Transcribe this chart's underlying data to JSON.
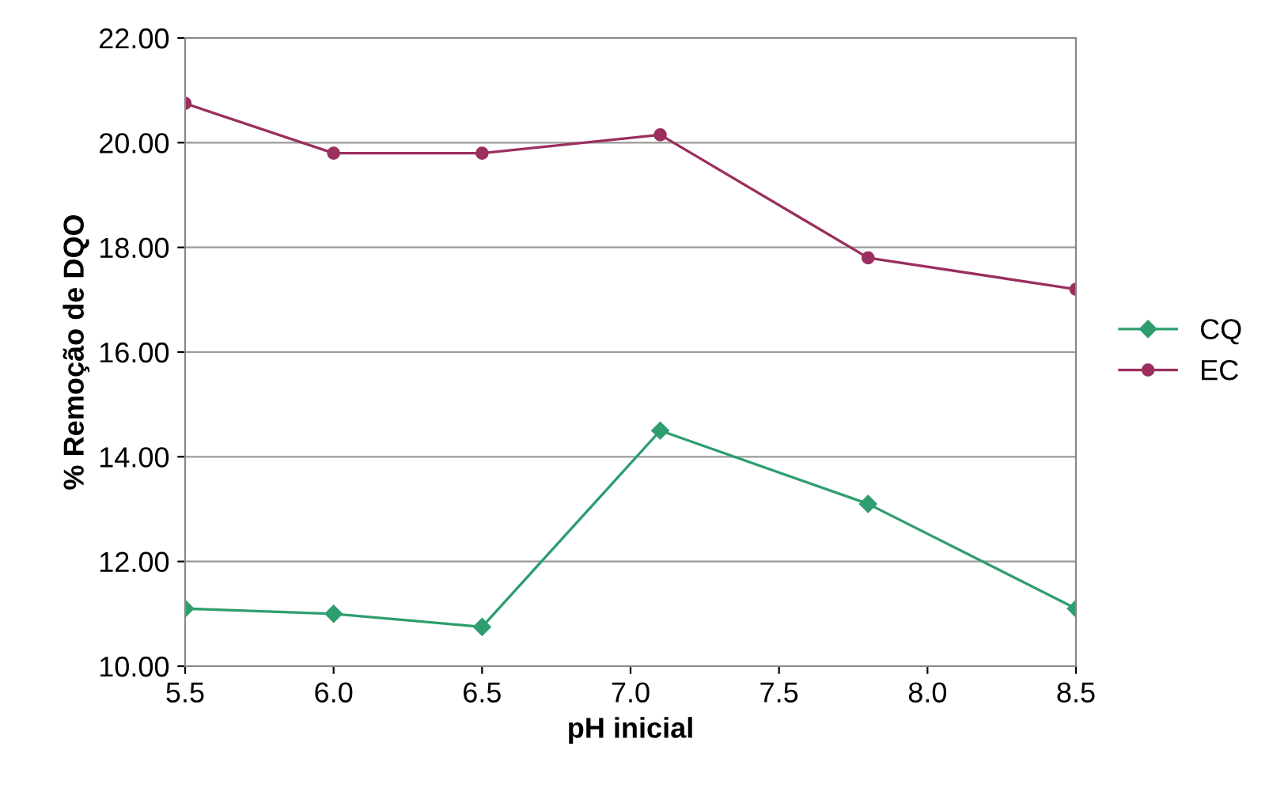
{
  "chart_data": {
    "type": "line",
    "xlabel": "pH inicial",
    "ylabel": "% Remoção de DQO",
    "x": [
      5.5,
      6.0,
      6.5,
      7.1,
      7.8,
      8.5
    ],
    "series": [
      {
        "name": "CQ",
        "color": "#2e9e6e",
        "marker": "diamond",
        "values": [
          11.1,
          11.0,
          10.75,
          14.5,
          13.1,
          11.1
        ]
      },
      {
        "name": "EC",
        "color": "#9b2f5e",
        "marker": "circle",
        "values": [
          20.75,
          19.8,
          19.8,
          20.15,
          17.8,
          17.2
        ]
      }
    ],
    "xlim": [
      5.5,
      8.5
    ],
    "xticks": [
      {
        "value": 5.5,
        "label": "5.5"
      },
      {
        "value": 6.0,
        "label": "6.0"
      },
      {
        "value": 6.5,
        "label": "6.5"
      },
      {
        "value": 7.0,
        "label": "7.0"
      },
      {
        "value": 7.5,
        "label": "7.5"
      },
      {
        "value": 8.0,
        "label": "8.0"
      },
      {
        "value": 8.5,
        "label": "8.5"
      }
    ],
    "ylim": [
      10,
      22
    ],
    "yticks": [
      {
        "value": 10,
        "label": "10.00"
      },
      {
        "value": 12,
        "label": "12.00"
      },
      {
        "value": 14,
        "label": "14.00"
      },
      {
        "value": 16,
        "label": "16.00"
      },
      {
        "value": 18,
        "label": "18.00"
      },
      {
        "value": 20,
        "label": "20.00"
      },
      {
        "value": 22,
        "label": "22.00"
      }
    ],
    "grid": "y",
    "legend": "right",
    "line_style": "solid"
  }
}
